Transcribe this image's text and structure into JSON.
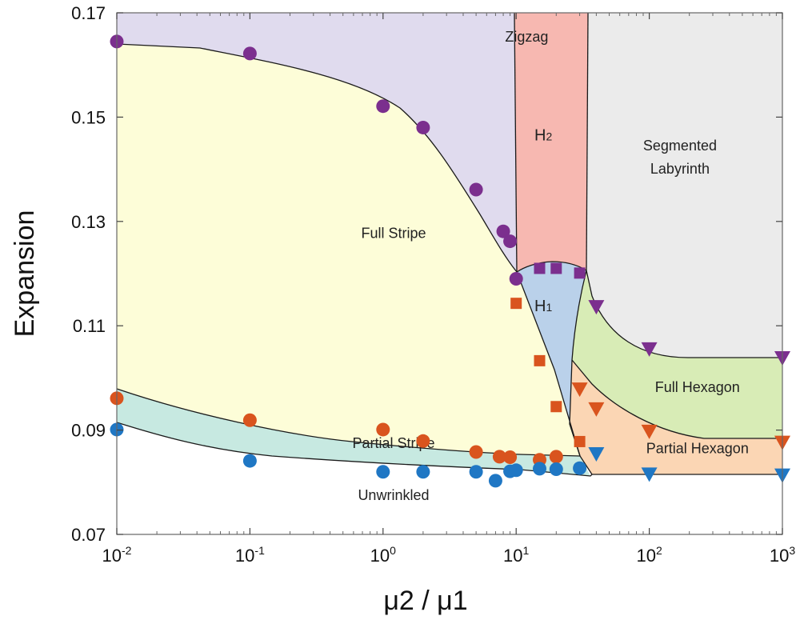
{
  "chart_data": {
    "type": "scatter",
    "title": "",
    "xlabel": "μ2 / μ1",
    "ylabel": "Expansion",
    "xscale": "log",
    "xlim": [
      0.01,
      1000
    ],
    "ylim": [
      0.07,
      0.17
    ],
    "x_ticks": [
      0.01,
      0.1,
      1,
      10,
      100,
      1000
    ],
    "x_tick_labels": [
      {
        "base": "10",
        "exp": "-2"
      },
      {
        "base": "10",
        "exp": "-1"
      },
      {
        "base": "10",
        "exp": "0"
      },
      {
        "base": "10",
        "exp": "1"
      },
      {
        "base": "10",
        "exp": "2"
      },
      {
        "base": "10",
        "exp": "3"
      }
    ],
    "y_ticks": [
      0.07,
      0.09,
      0.11,
      0.13,
      0.15,
      0.17
    ],
    "y_tick_labels": [
      "0.07",
      "0.09",
      "0.11",
      "0.13",
      "0.15",
      "0.17"
    ],
    "grid": false,
    "colors": {
      "purple": "#7b2f8e",
      "orange": "#d9541e",
      "blue": "#1f77c4",
      "zigzag_fill": "#e0dbee",
      "full_stripe_fill": "#fdfdd8",
      "partial_stripe_fill": "#c7e9e1",
      "h2_fill": "#f7b8b1",
      "h1_fill": "#bad1ea",
      "segmented_fill": "#ebebeb",
      "full_hexagon_fill": "#d8ecb6",
      "partial_hexagon_fill": "#fbd6b4",
      "unwrinkled_fill": "#ffffff"
    },
    "regions": [
      {
        "label": "Zigzag",
        "x": 12,
        "y": 0.1645
      },
      {
        "label": "Full Stripe",
        "x": 1.2,
        "y": 0.1268
      },
      {
        "label": "Partial Stripe",
        "x": 1.2,
        "y": 0.0866
      },
      {
        "label": "Unwrinkled",
        "x": 1.2,
        "y": 0.0766
      },
      {
        "label": "H2",
        "x": 16,
        "y": 0.1455
      },
      {
        "label": "H1",
        "x": 16,
        "y": 0.1128
      },
      {
        "label": "Segmented Labyrinth",
        "x": 170,
        "y": 0.1436
      },
      {
        "label": "Full Hexagon",
        "x": 230,
        "y": 0.0973
      },
      {
        "label": "Partial Hexagon",
        "x": 230,
        "y": 0.0856
      }
    ],
    "series": [
      {
        "marker": "circle",
        "color": "purple",
        "points": [
          [
            0.01,
            0.1645
          ],
          [
            0.1,
            0.1622
          ],
          [
            1,
            0.1521
          ],
          [
            2,
            0.148
          ],
          [
            5,
            0.1361
          ],
          [
            8,
            0.1281
          ],
          [
            9,
            0.1262
          ],
          [
            10,
            0.119
          ]
        ]
      },
      {
        "marker": "square",
        "color": "purple",
        "points": [
          [
            15,
            0.121
          ],
          [
            20,
            0.121
          ],
          [
            30,
            0.1201
          ]
        ]
      },
      {
        "marker": "triangle-down",
        "color": "purple",
        "points": [
          [
            40,
            0.1137
          ],
          [
            100,
            0.1056
          ],
          [
            1000,
            0.1039
          ]
        ]
      },
      {
        "marker": "circle",
        "color": "orange",
        "points": [
          [
            0.01,
            0.0961
          ],
          [
            0.1,
            0.0919
          ],
          [
            1,
            0.0901
          ],
          [
            2,
            0.0879
          ],
          [
            5,
            0.0858
          ],
          [
            7.5,
            0.0849
          ],
          [
            9,
            0.0848
          ],
          [
            15,
            0.0843
          ],
          [
            20,
            0.0849
          ]
        ]
      },
      {
        "marker": "square",
        "color": "orange",
        "points": [
          [
            10,
            0.1143
          ],
          [
            15,
            0.1033
          ],
          [
            20,
            0.0945
          ],
          [
            30,
            0.0878
          ]
        ]
      },
      {
        "marker": "triangle-down",
        "color": "orange",
        "points": [
          [
            30,
            0.0979
          ],
          [
            40,
            0.0941
          ],
          [
            100,
            0.0898
          ],
          [
            1000,
            0.0877
          ]
        ]
      },
      {
        "marker": "circle",
        "color": "blue",
        "points": [
          [
            0.01,
            0.0901
          ],
          [
            0.1,
            0.0841
          ],
          [
            1,
            0.082
          ],
          [
            2,
            0.082
          ],
          [
            5,
            0.082
          ],
          [
            7,
            0.0803
          ],
          [
            9,
            0.0821
          ],
          [
            10,
            0.0823
          ],
          [
            15,
            0.0826
          ],
          [
            20,
            0.0825
          ],
          [
            30,
            0.0827
          ]
        ]
      },
      {
        "marker": "triangle-down",
        "color": "blue",
        "points": [
          [
            40,
            0.0855
          ],
          [
            100,
            0.0816
          ],
          [
            1000,
            0.0814
          ]
        ]
      }
    ]
  }
}
